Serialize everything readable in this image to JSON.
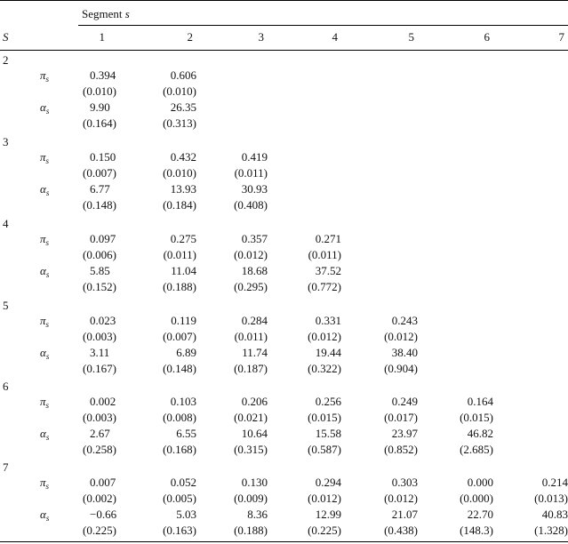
{
  "header": {
    "segment_label": "Segment s",
    "S_label": "S",
    "columns": [
      "1",
      "2",
      "3",
      "4",
      "5",
      "6",
      "7"
    ]
  },
  "groups": [
    {
      "S": "2",
      "pi": {
        "values": [
          "0.394",
          "0.606"
        ],
        "se": [
          "(0.010)",
          "(0.010)"
        ]
      },
      "alpha": {
        "values": [
          "9.90",
          "26.35"
        ],
        "se": [
          "(0.164)",
          "(0.313)"
        ]
      }
    },
    {
      "S": "3",
      "pi": {
        "values": [
          "0.150",
          "0.432",
          "0.419"
        ],
        "se": [
          "(0.007)",
          "(0.010)",
          "(0.011)"
        ]
      },
      "alpha": {
        "values": [
          "6.77",
          "13.93",
          "30.93"
        ],
        "se": [
          "(0.148)",
          "(0.184)",
          "(0.408)"
        ]
      }
    },
    {
      "S": "4",
      "pi": {
        "values": [
          "0.097",
          "0.275",
          "0.357",
          "0.271"
        ],
        "se": [
          "(0.006)",
          "(0.011)",
          "(0.012)",
          "(0.011)"
        ]
      },
      "alpha": {
        "values": [
          "5.85",
          "11.04",
          "18.68",
          "37.52"
        ],
        "se": [
          "(0.152)",
          "(0.188)",
          "(0.295)",
          "(0.772)"
        ]
      }
    },
    {
      "S": "5",
      "pi": {
        "values": [
          "0.023",
          "0.119",
          "0.284",
          "0.331",
          "0.243"
        ],
        "se": [
          "(0.003)",
          "(0.007)",
          "(0.011)",
          "(0.012)",
          "(0.012)"
        ]
      },
      "alpha": {
        "values": [
          "3.11",
          "6.89",
          "11.74",
          "19.44",
          "38.40"
        ],
        "se": [
          "(0.167)",
          "(0.148)",
          "(0.187)",
          "(0.322)",
          "(0.904)"
        ]
      }
    },
    {
      "S": "6",
      "pi": {
        "values": [
          "0.002",
          "0.103",
          "0.206",
          "0.256",
          "0.249",
          "0.164"
        ],
        "se": [
          "(0.003)",
          "(0.008)",
          "(0.021)",
          "(0.015)",
          "(0.017)",
          "(0.015)"
        ]
      },
      "alpha": {
        "values": [
          "2.67",
          "6.55",
          "10.64",
          "15.58",
          "23.97",
          "46.82"
        ],
        "se": [
          "(0.258)",
          "(0.168)",
          "(0.315)",
          "(0.587)",
          "(0.852)",
          "(2.685)"
        ]
      }
    },
    {
      "S": "7",
      "pi": {
        "values": [
          "0.007",
          "0.052",
          "0.130",
          "0.294",
          "0.303",
          "0.000",
          "0.214"
        ],
        "se": [
          "(0.002)",
          "(0.005)",
          "(0.009)",
          "(0.012)",
          "(0.012)",
          "(0.000)",
          "(0.013)"
        ]
      },
      "alpha": {
        "values": [
          "−0.66",
          "5.03",
          "8.36",
          "12.99",
          "21.07",
          "22.70",
          "40.83"
        ],
        "se": [
          "(0.225)",
          "(0.163)",
          "(0.188)",
          "(0.225)",
          "(0.438)",
          "(148.3)",
          "(1.328)"
        ]
      }
    }
  ]
}
